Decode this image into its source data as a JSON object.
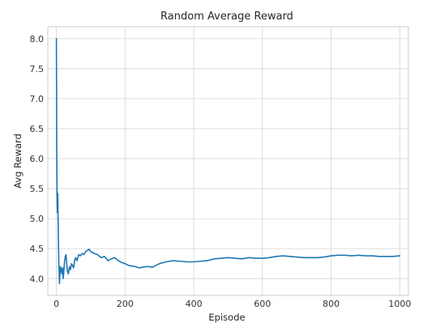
{
  "chart_data": {
    "type": "line",
    "title": "Random Average Reward",
    "xlabel": "Episode",
    "ylabel": "Avg Reward",
    "xlim": [
      -25,
      1025
    ],
    "ylim": [
      3.72,
      8.2
    ],
    "xticks": [
      0,
      200,
      400,
      600,
      800,
      1000
    ],
    "xtick_labels": [
      "0",
      "200",
      "400",
      "600",
      "800",
      "1000"
    ],
    "yticks": [
      4.0,
      4.5,
      5.0,
      5.5,
      6.0,
      6.5,
      7.0,
      7.5,
      8.0
    ],
    "ytick_labels": [
      "4.0",
      "4.5",
      "5.0",
      "5.5",
      "6.0",
      "6.5",
      "7.0",
      "7.5",
      "8.0"
    ],
    "grid": true,
    "colors": {
      "series": "#1f77b4",
      "grid": "#d9d9d9",
      "frame": "#cccccc"
    },
    "series": [
      {
        "x": [
          0,
          1,
          2,
          3,
          4,
          5,
          6,
          7,
          8,
          9,
          10,
          12,
          14,
          16,
          18,
          20,
          22,
          24,
          26,
          28,
          30,
          32,
          35,
          38,
          41,
          44,
          47,
          50,
          53,
          56,
          60,
          65,
          70,
          75,
          80,
          85,
          90,
          95,
          100,
          110,
          120,
          130,
          140,
          150,
          160,
          170,
          180,
          190,
          200,
          210,
          220,
          230,
          240,
          250,
          260,
          270,
          280,
          290,
          300,
          320,
          340,
          360,
          380,
          400,
          420,
          440,
          460,
          480,
          500,
          520,
          540,
          560,
          580,
          600,
          620,
          640,
          660,
          680,
          700,
          720,
          740,
          760,
          780,
          800,
          820,
          840,
          860,
          880,
          900,
          920,
          940,
          960,
          980,
          1000
        ],
        "y": [
          8.0,
          6.2,
          5.4,
          5.1,
          5.42,
          5.0,
          4.62,
          4.3,
          4.1,
          3.92,
          4.05,
          4.2,
          4.15,
          4.08,
          4.18,
          4.0,
          4.15,
          4.3,
          4.37,
          4.4,
          4.25,
          4.12,
          4.08,
          4.2,
          4.15,
          4.25,
          4.22,
          4.18,
          4.3,
          4.35,
          4.3,
          4.4,
          4.38,
          4.42,
          4.4,
          4.45,
          4.47,
          4.49,
          4.45,
          4.42,
          4.4,
          4.35,
          4.37,
          4.3,
          4.33,
          4.35,
          4.3,
          4.27,
          4.25,
          4.22,
          4.21,
          4.2,
          4.18,
          4.19,
          4.2,
          4.2,
          4.19,
          4.22,
          4.25,
          4.28,
          4.3,
          4.29,
          4.28,
          4.28,
          4.29,
          4.3,
          4.33,
          4.34,
          4.35,
          4.34,
          4.33,
          4.35,
          4.34,
          4.34,
          4.35,
          4.37,
          4.38,
          4.37,
          4.36,
          4.35,
          4.35,
          4.35,
          4.36,
          4.38,
          4.39,
          4.39,
          4.38,
          4.39,
          4.38,
          4.38,
          4.37,
          4.37,
          4.37,
          4.38
        ]
      }
    ]
  }
}
